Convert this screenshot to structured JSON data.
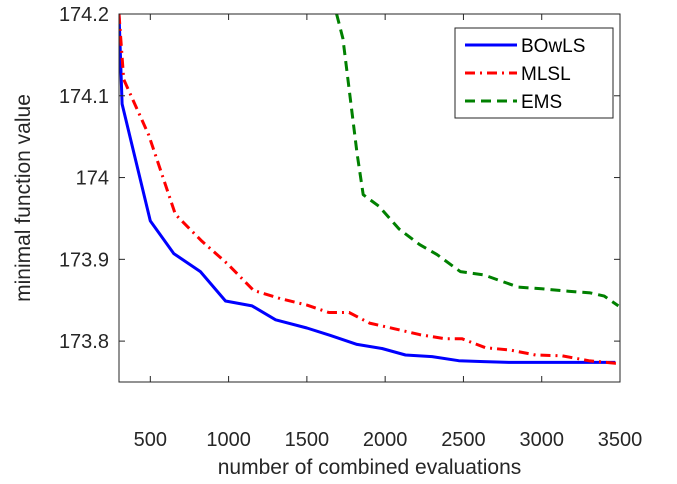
{
  "chart_data": {
    "type": "line",
    "xlabel": "number of combined evaluations",
    "ylabel": "minimal function value",
    "xlim": [
      300,
      3500
    ],
    "ylim": [
      173.75,
      174.2
    ],
    "xticks": [
      500,
      1000,
      1500,
      2000,
      2500,
      3000,
      3500
    ],
    "xtick_labels": [
      "500",
      "1000",
      "1500",
      "2000",
      "2500",
      "3000",
      "3500"
    ],
    "yticks": [
      173.8,
      173.9,
      174,
      174.1,
      174.2
    ],
    "ytick_labels": [
      "173.8",
      "173.9",
      "174",
      "174.1",
      "174.2"
    ],
    "grid": false,
    "legend_position": "top-right",
    "series": [
      {
        "name": "BOwLS",
        "color": "#0000ff",
        "dash": "solid",
        "x": [
          300,
          320,
          500,
          650,
          820,
          980,
          1150,
          1300,
          1500,
          1650,
          1820,
          1980,
          2130,
          2300,
          2470,
          2630,
          2800,
          2960,
          3130,
          3300,
          3470
        ],
        "y": [
          174.2,
          174.09,
          173.947,
          173.907,
          173.885,
          173.849,
          173.843,
          173.826,
          173.816,
          173.807,
          173.796,
          173.791,
          173.783,
          173.781,
          173.776,
          173.775,
          173.774,
          173.774,
          173.774,
          173.774,
          173.774
        ]
      },
      {
        "name": "MLSL",
        "color": "#ff0000",
        "dash": "dashdot",
        "x": [
          300,
          330,
          490,
          660,
          830,
          990,
          1160,
          1330,
          1500,
          1640,
          1770,
          1900,
          2060,
          2220,
          2380,
          2490,
          2640,
          2800,
          2960,
          3130,
          3300,
          3470,
          3500
        ],
        "y": [
          174.2,
          174.12,
          174.052,
          173.955,
          173.922,
          173.895,
          173.862,
          173.852,
          173.844,
          173.835,
          173.835,
          173.822,
          173.815,
          173.808,
          173.803,
          173.803,
          173.792,
          173.789,
          173.783,
          173.782,
          173.776,
          173.773,
          173.773
        ]
      },
      {
        "name": "EMS",
        "color": "#008000",
        "dash": "dashed",
        "x": [
          1690,
          1730,
          1820,
          1860,
          1960,
          2090,
          2220,
          2330,
          2480,
          2630,
          2850,
          3000,
          3170,
          3310,
          3400,
          3490
        ],
        "y": [
          174.2,
          174.17,
          174.03,
          173.979,
          173.965,
          173.937,
          173.918,
          173.906,
          173.885,
          173.881,
          173.866,
          173.864,
          173.861,
          173.859,
          173.855,
          173.843
        ]
      }
    ]
  }
}
